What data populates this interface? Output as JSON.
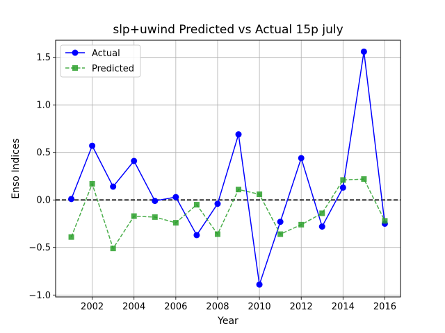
{
  "chart_data": {
    "type": "line",
    "title": "slp+uwind Predicted vs Actual 15p july",
    "xlabel": "Year",
    "ylabel": "Enso Indices",
    "xlim": [
      2000.25,
      2016.75
    ],
    "ylim": [
      -1.02,
      1.68
    ],
    "xticks": [
      2002,
      2004,
      2006,
      2008,
      2010,
      2012,
      2014,
      2016
    ],
    "xtick_labels": [
      "2002",
      "2004",
      "2006",
      "2008",
      "2010",
      "2012",
      "2014",
      "2016"
    ],
    "yticks": [
      -1.0,
      -0.5,
      0.0,
      0.5,
      1.0,
      1.5
    ],
    "ytick_labels": [
      "−1.0",
      "−0.5",
      "0.0",
      "0.5",
      "1.0",
      "1.5"
    ],
    "grid": true,
    "legend_position": "top-left",
    "reference_line": {
      "y": 0,
      "style": "dashed",
      "color": "#000000"
    },
    "x": [
      2001,
      2002,
      2003,
      2004,
      2005,
      2006,
      2007,
      2008,
      2009,
      2010,
      2011,
      2012,
      2013,
      2014,
      2015,
      2016
    ],
    "series": [
      {
        "name": "Actual",
        "color": "#0000ff",
        "line_style": "solid",
        "marker": "circle",
        "values": [
          0.01,
          0.57,
          0.14,
          0.41,
          -0.01,
          0.03,
          -0.37,
          -0.04,
          0.69,
          -0.89,
          -0.23,
          0.44,
          -0.28,
          0.13,
          1.56,
          -0.25
        ]
      },
      {
        "name": "Predicted",
        "color": "#2ca02c",
        "line_style": "dashed",
        "marker": "square",
        "values": [
          -0.39,
          0.17,
          -0.51,
          -0.17,
          -0.18,
          -0.24,
          -0.05,
          -0.36,
          0.11,
          0.06,
          -0.36,
          -0.26,
          -0.14,
          0.21,
          0.22,
          -0.22
        ]
      }
    ]
  }
}
